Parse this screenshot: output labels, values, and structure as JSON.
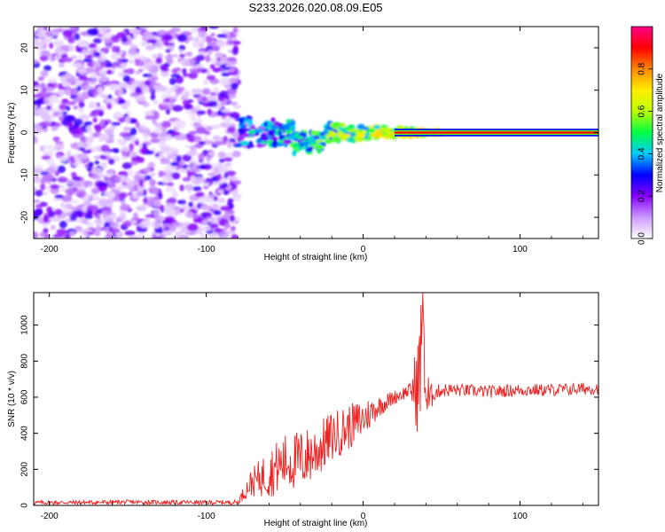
{
  "title": "S233.2026.020.08.09.E05",
  "chart_data": [
    {
      "type": "heatmap",
      "xlabel": "Height of straight line (km)",
      "ylabel": "Frequency (Hz)",
      "xlim": [
        -210,
        150
      ],
      "ylim": [
        -25,
        25
      ],
      "xticks": [
        -200,
        -100,
        0,
        100
      ],
      "yticks": [
        -20,
        -10,
        0,
        10,
        20
      ],
      "noise_region": [
        -210,
        -80
      ],
      "signal_line": {
        "frequency": 0,
        "from": -80,
        "to": 150
      },
      "colorbar": {
        "label": "Normalized spectral amplitude",
        "range": [
          0,
          1
        ],
        "ticks": [
          0.0,
          0.2,
          0.4,
          0.6,
          0.8
        ],
        "tick_labels": [
          "0.0",
          "0.2",
          "0.4",
          "0.6",
          "0.8"
        ],
        "colors": [
          "#ffffff",
          "#cc99ff",
          "#8800ff",
          "#0000ff",
          "#00ccff",
          "#00ff44",
          "#bbff00",
          "#ffee00",
          "#ff8800",
          "#ff0000",
          "#ff0088"
        ]
      }
    },
    {
      "type": "line",
      "xlabel": "Height of straight line (km)",
      "ylabel": "SNR (10 * v/v)",
      "xlim": [
        -210,
        150
      ],
      "ylim": [
        0,
        1180
      ],
      "xticks": [
        -200,
        -100,
        0,
        100
      ],
      "yticks": [
        0,
        200,
        400,
        600,
        800,
        1000
      ],
      "series": [
        {
          "name": "SNR",
          "color": "#ee2222",
          "x": [
            -210,
            -150,
            -100,
            -80,
            -72,
            -60,
            -50,
            -40,
            -30,
            -20,
            -10,
            0,
            10,
            20,
            30,
            33,
            36,
            38,
            40,
            42,
            45,
            50,
            60,
            80,
            100,
            120,
            150
          ],
          "y": [
            15,
            18,
            16,
            18,
            120,
            180,
            240,
            250,
            300,
            380,
            430,
            480,
            550,
            600,
            640,
            650,
            700,
            1180,
            600,
            580,
            620,
            640,
            640,
            630,
            640,
            640,
            650
          ],
          "amp": [
            12,
            12,
            12,
            12,
            70,
            140,
            160,
            170,
            160,
            140,
            130,
            110,
            60,
            40,
            40,
            200,
            350,
            250,
            300,
            120,
            40,
            40,
            35,
            35,
            35,
            35,
            35
          ]
        }
      ]
    }
  ]
}
